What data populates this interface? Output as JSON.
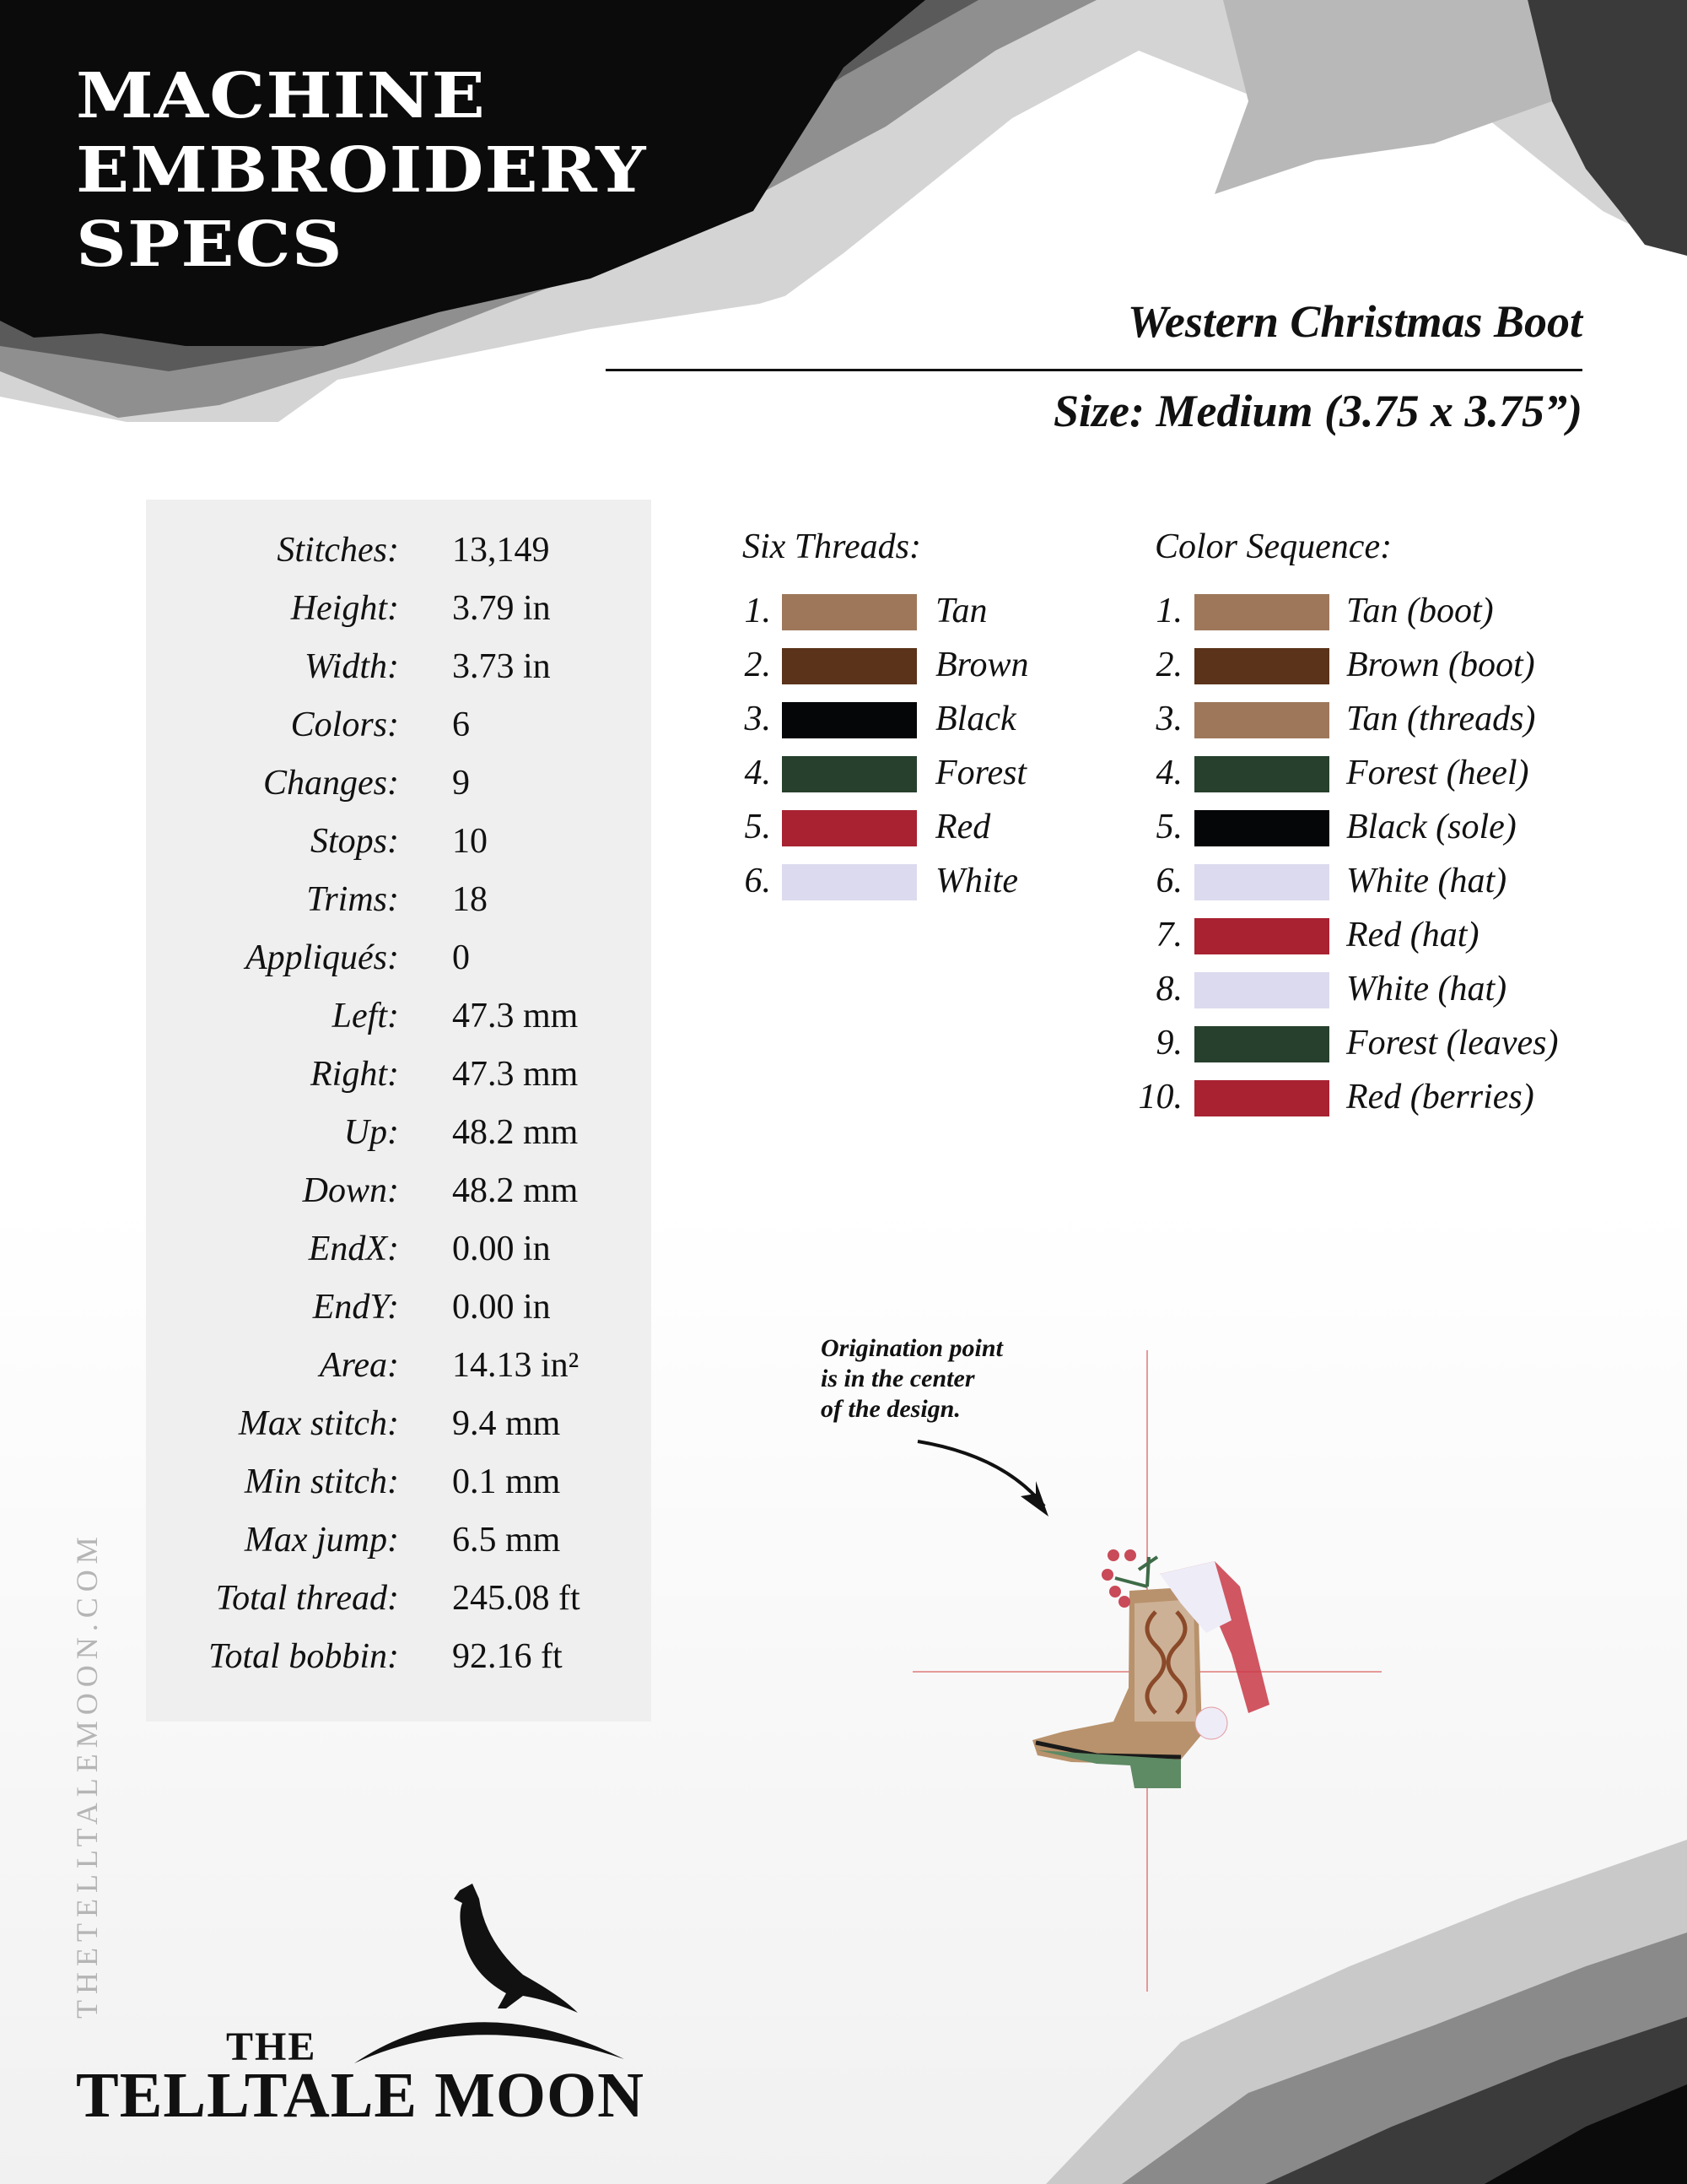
{
  "header": {
    "title_lines": [
      "MACHINE",
      "EMBROIDERY",
      "SPECS"
    ],
    "design_name": "Western Christmas Boot",
    "size": "Size: Medium (3.75 x 3.75”)"
  },
  "stats": [
    {
      "label": "Stitches:",
      "value": "13,149"
    },
    {
      "label": "Height:",
      "value": "3.79 in"
    },
    {
      "label": "Width:",
      "value": "3.73 in"
    },
    {
      "label": "Colors:",
      "value": "6"
    },
    {
      "label": "Changes:",
      "value": "9"
    },
    {
      "label": "Stops:",
      "value": "10"
    },
    {
      "label": "Trims:",
      "value": "18"
    },
    {
      "label": "Appliqués:",
      "value": "0"
    },
    {
      "label": "Left:",
      "value": "47.3 mm"
    },
    {
      "label": "Right:",
      "value": "47.3 mm"
    },
    {
      "label": "Up:",
      "value": "48.2 mm"
    },
    {
      "label": "Down:",
      "value": "48.2 mm"
    },
    {
      "label": "EndX:",
      "value": "0.00 in"
    },
    {
      "label": "EndY:",
      "value": "0.00 in"
    },
    {
      "label": "Area:",
      "value": "14.13 in²"
    },
    {
      "label": "Max stitch:",
      "value": "9.4 mm"
    },
    {
      "label": "Min stitch:",
      "value": "0.1 mm"
    },
    {
      "label": "Max jump:",
      "value": "6.5 mm"
    },
    {
      "label": "Total thread:",
      "value": "245.08 ft"
    },
    {
      "label": "Total bobbin:",
      "value": "92.16 ft"
    }
  ],
  "threads": {
    "heading": "Six Threads:",
    "items": [
      {
        "num": "1.",
        "name": "Tan",
        "color": "#9e775a"
      },
      {
        "num": "2.",
        "name": "Brown",
        "color": "#5a331a"
      },
      {
        "num": "3.",
        "name": "Black",
        "color": "#050608"
      },
      {
        "num": "4.",
        "name": "Forest",
        "color": "#27402d"
      },
      {
        "num": "5.",
        "name": "Red",
        "color": "#a82231"
      },
      {
        "num": "6.",
        "name": "White",
        "color": "#dcdaee"
      }
    ]
  },
  "sequence": {
    "heading": "Color Sequence:",
    "items": [
      {
        "num": "1.",
        "name": "Tan (boot)",
        "color": "#9e775a"
      },
      {
        "num": "2.",
        "name": "Brown (boot)",
        "color": "#5a331a"
      },
      {
        "num": "3.",
        "name": "Tan (threads)",
        "color": "#9e775a"
      },
      {
        "num": "4.",
        "name": "Forest (heel)",
        "color": "#27402d"
      },
      {
        "num": "5.",
        "name": "Black (sole)",
        "color": "#050608"
      },
      {
        "num": "6.",
        "name": "White (hat)",
        "color": "#dcdaee"
      },
      {
        "num": "7.",
        "name": "Red (hat)",
        "color": "#a82231"
      },
      {
        "num": "8.",
        "name": "White (hat)",
        "color": "#dcdaee"
      },
      {
        "num": "9.",
        "name": "Forest (leaves)",
        "color": "#27402d"
      },
      {
        "num": "10.",
        "name": "Red (berries)",
        "color": "#a82231"
      }
    ]
  },
  "origination_note": [
    "Origination point",
    "is in the center",
    "of the design."
  ],
  "website": "THETELLTALEMOON.COM",
  "logo": {
    "the": "THE",
    "name": "TELLTALE MOON"
  }
}
